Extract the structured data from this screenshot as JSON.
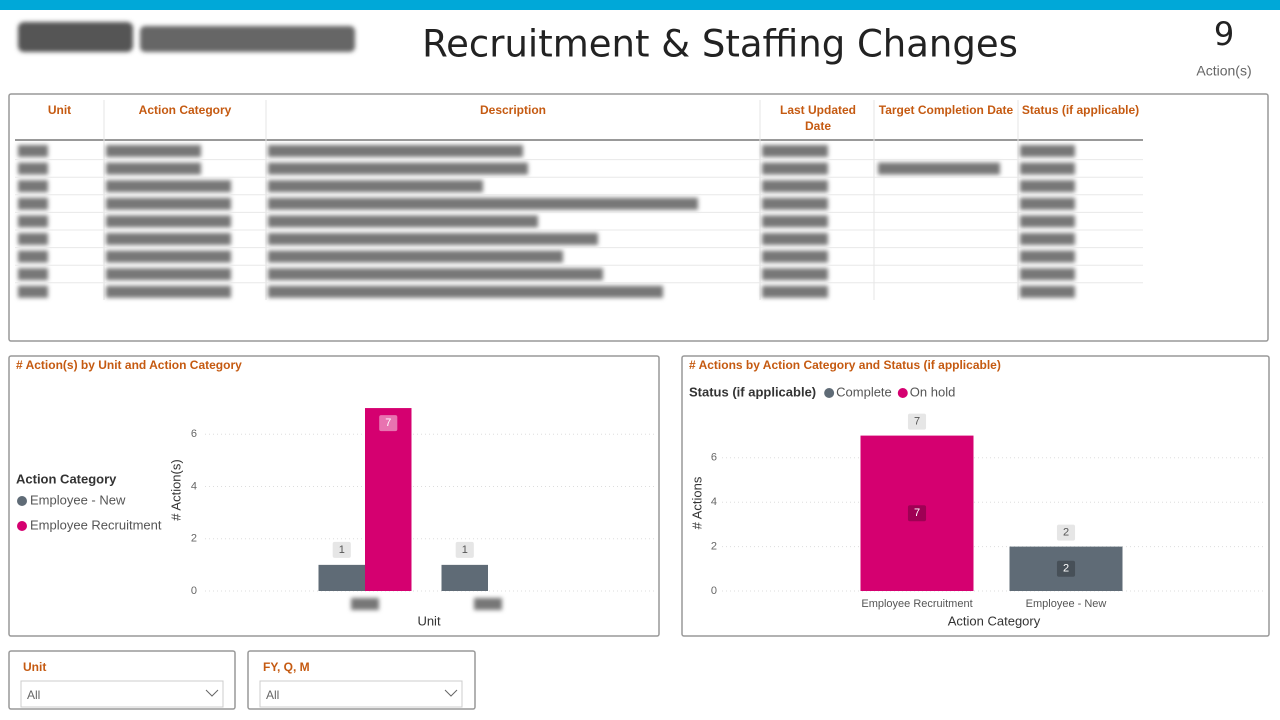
{
  "header": {
    "title": "Recruitment & Staffing Changes",
    "kpi": {
      "value": 9,
      "label": "Action(s)"
    }
  },
  "table": {
    "columns": [
      "Unit",
      "Action Category",
      "Description",
      "Last Updated Date",
      "Target Completion Date",
      "Status (if applicable)"
    ]
  },
  "chart_data": [
    {
      "type": "bar",
      "title": "# Action(s) by Unit and Action Category",
      "legend_title": "Action Category",
      "categories": [
        null,
        null
      ],
      "series": [
        {
          "name": "Employee - New",
          "color": "#5f6b76",
          "values": [
            1,
            1
          ]
        },
        {
          "name": "Employee Recruitment",
          "color": "#d50070",
          "values": [
            7,
            null
          ]
        }
      ],
      "xlabel": "Unit",
      "ylabel": "# Action(s)",
      "ylim": [
        0,
        7.5
      ],
      "yticks": [
        0,
        2,
        4,
        6
      ],
      "grid": true
    },
    {
      "type": "stacked_bar",
      "title": "# Actions by Action Category and Status (if applicable)",
      "legend_title": "Status (if applicable)",
      "categories": [
        "Employee Recruitment",
        "Employee - New"
      ],
      "series": [
        {
          "name": "Complete",
          "color": "#5f6b76",
          "values": [
            null,
            2
          ]
        },
        {
          "name": "On hold",
          "color": "#d50070",
          "values": [
            7,
            null
          ]
        }
      ],
      "totals": [
        7,
        2
      ],
      "xlabel": "Action Category",
      "ylabel": "# Actions",
      "ylim": [
        0,
        8
      ],
      "yticks": [
        0,
        2,
        4,
        6
      ],
      "grid": true
    }
  ],
  "slicers": [
    {
      "title": "Unit",
      "value": "All"
    },
    {
      "title": "FY, Q, M",
      "value": "All"
    }
  ]
}
